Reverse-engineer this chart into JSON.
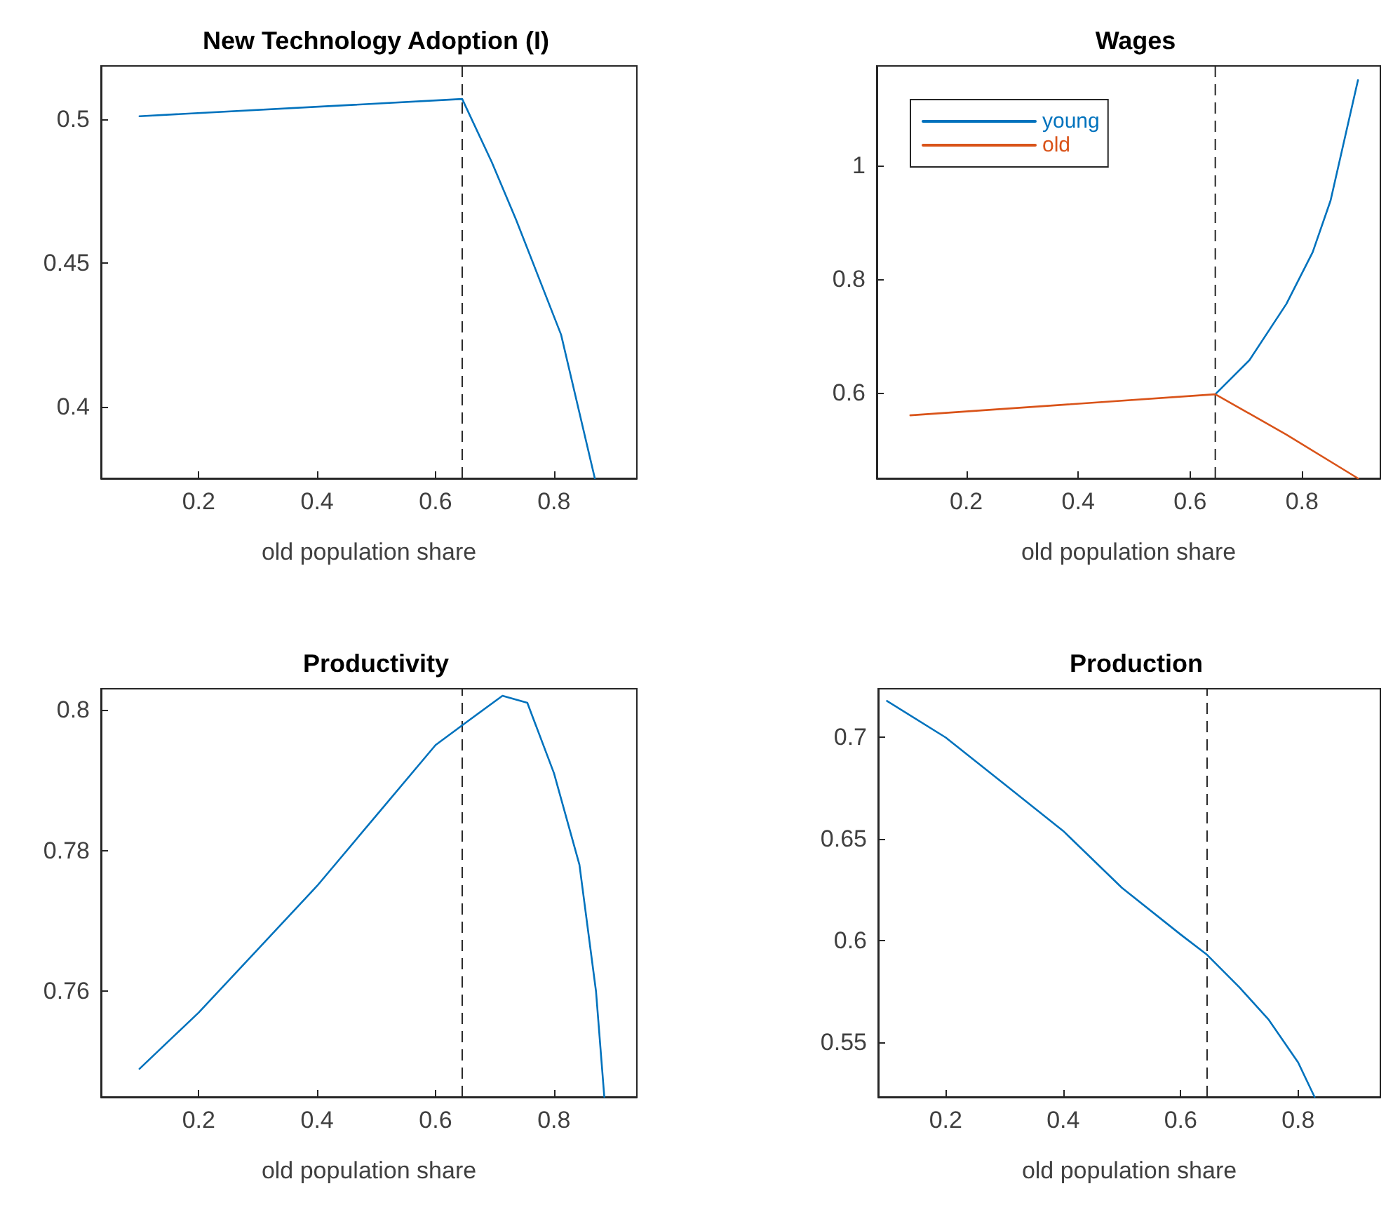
{
  "chart_data": [
    {
      "type": "line",
      "title": "New Technology Adoption (I)",
      "xlabel": "old population share",
      "xlim": [
        0.035,
        0.94
      ],
      "xticks": [
        0.2,
        0.4,
        0.6,
        0.8
      ],
      "ylim": [
        0.375,
        0.5185
      ],
      "yticks": [
        0.4,
        0.45,
        0.5
      ],
      "grid": false,
      "legend": false,
      "marker": "none",
      "series": [
        {
          "color": "#0072bd",
          "x": [
            0.1,
            0.645,
            0.695,
            0.736,
            0.812,
            0.869
          ],
          "values": [
            0.501,
            0.507,
            0.485,
            0.465,
            0.425,
            0.375
          ]
        }
      ],
      "ref_lines": [
        {
          "axis": "x",
          "value": 0.645,
          "color": "#262626",
          "line_style": "dashed"
        }
      ]
    },
    {
      "type": "line",
      "title": "Wages",
      "xlabel": "old population share",
      "xlim": [
        0.04,
        0.94
      ],
      "xticks": [
        0.2,
        0.4,
        0.6,
        0.8
      ],
      "ylim": [
        0.449,
        1.175
      ],
      "yticks": [
        0.6,
        0.8,
        1
      ],
      "grid": false,
      "legend": "top left",
      "marker": "none",
      "series": [
        {
          "name": "young",
          "color": "#0072bd",
          "x": [
            0.645,
            0.706,
            0.772,
            0.819,
            0.851,
            0.9
          ],
          "values": [
            0.597,
            0.657,
            0.756,
            0.847,
            0.938,
            1.15
          ]
        },
        {
          "name": "old",
          "color": "#d95319",
          "x": [
            0.1,
            0.645,
            0.772,
            0.9
          ],
          "values": [
            0.56,
            0.597,
            0.526,
            0.449
          ]
        }
      ],
      "ref_lines": [
        {
          "axis": "x",
          "value": 0.645,
          "color": "#262626",
          "line_style": "dashed"
        }
      ]
    },
    {
      "type": "line",
      "title": "Productivity",
      "xlabel": "old population share",
      "xlim": [
        0.035,
        0.94
      ],
      "xticks": [
        0.2,
        0.4,
        0.6,
        0.8
      ],
      "ylim": [
        0.745,
        0.803
      ],
      "yticks": [
        0.76,
        0.78,
        0.8
      ],
      "grid": false,
      "legend": false,
      "marker": "none",
      "series": [
        {
          "color": "#0072bd",
          "x": [
            0.1,
            0.2,
            0.3,
            0.4,
            0.5,
            0.6,
            0.648,
            0.713,
            0.755,
            0.8,
            0.843,
            0.871,
            0.885
          ],
          "values": [
            0.749,
            0.757,
            0.766,
            0.775,
            0.785,
            0.795,
            0.798,
            0.802,
            0.801,
            0.791,
            0.778,
            0.76,
            0.745
          ]
        }
      ],
      "ref_lines": [
        {
          "axis": "x",
          "value": 0.645,
          "color": "#262626",
          "line_style": "dashed"
        }
      ]
    },
    {
      "type": "line",
      "title": "Production",
      "xlabel": "old population share",
      "xlim": [
        0.085,
        0.94
      ],
      "xticks": [
        0.2,
        0.4,
        0.6,
        0.8
      ],
      "ylim": [
        0.523,
        0.724
      ],
      "yticks": [
        0.55,
        0.6,
        0.65,
        0.7
      ],
      "grid": false,
      "legend": false,
      "marker": "none",
      "series": [
        {
          "color": "#0072bd",
          "x": [
            0.1,
            0.2,
            0.3,
            0.4,
            0.5,
            0.6,
            0.645,
            0.7,
            0.75,
            0.8,
            0.828
          ],
          "values": [
            0.718,
            0.7,
            0.677,
            0.654,
            0.626,
            0.603,
            0.593,
            0.577,
            0.561,
            0.54,
            0.523
          ]
        }
      ],
      "ref_lines": [
        {
          "axis": "x",
          "value": 0.645,
          "color": "#262626",
          "line_style": "dashed"
        }
      ]
    }
  ]
}
